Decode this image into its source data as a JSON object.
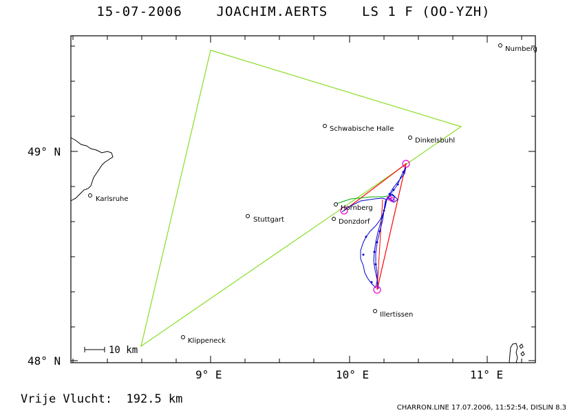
{
  "header": {
    "title": "15-07-2006    JOACHIM.AERTS    LS 1 F (OO-YZH)"
  },
  "axes": {
    "x_ticks": [
      "9° E",
      "10° E",
      "11° E"
    ],
    "y_ticks": [
      "49° N",
      "48° N"
    ]
  },
  "scale_bar": {
    "label": "10 km"
  },
  "places": [
    {
      "name": "Nurnberg"
    },
    {
      "name": "Schwabische Halle"
    },
    {
      "name": "Dinkelsbuhl"
    },
    {
      "name": "Karlsruhe"
    },
    {
      "name": "Hornberg"
    },
    {
      "name": "Stuttgart"
    },
    {
      "name": "Donzdorf"
    },
    {
      "name": "Illertissen"
    },
    {
      "name": "Klippeneck"
    }
  ],
  "footer": {
    "distance": "Vrije Vlucht:  192.5 km",
    "credit": "CHARRON.LINE 17.07.2006, 11:52:54, DISLIN 8.3"
  },
  "colors": {
    "triangle": "#88dd22",
    "task": "#ff0000",
    "track": "#0000cc",
    "turnpoint": "#ee00cc",
    "green_track": "#00aa00"
  }
}
